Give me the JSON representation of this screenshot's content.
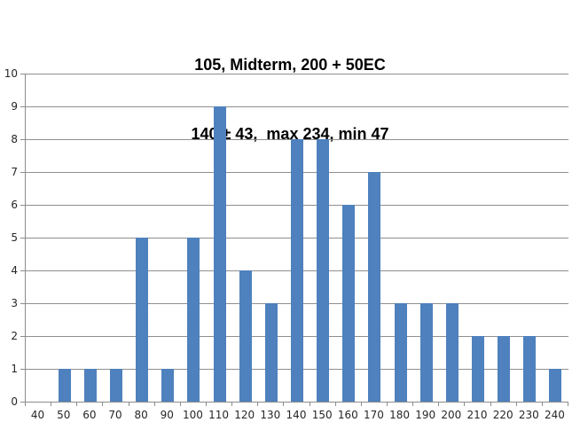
{
  "title": {
    "line1": "105, Midterm, 200 + 50EC",
    "line2": "140 ± 43,  max 234, min 47"
  },
  "chart_data": {
    "type": "bar",
    "title": "105, Midterm, 200 + 50EC",
    "subtitle": "140 ± 43,  max 234, min 47",
    "categories": [
      40,
      50,
      60,
      70,
      80,
      90,
      100,
      110,
      120,
      130,
      140,
      150,
      160,
      170,
      180,
      190,
      200,
      210,
      220,
      230,
      240
    ],
    "values": [
      0,
      1,
      1,
      1,
      5,
      1,
      5,
      9,
      4,
      3,
      8,
      8,
      6,
      7,
      3,
      3,
      3,
      2,
      2,
      2,
      1
    ],
    "xlabel": "",
    "ylabel": "",
    "ylim": [
      0,
      10
    ],
    "ytick_step": 1,
    "ytick_labels": [
      "0",
      "1",
      "2",
      "3",
      "4",
      "5",
      "6",
      "7",
      "8",
      "9",
      "10"
    ],
    "grid": "horizontal",
    "legend": "none",
    "colors": {
      "bar": "#4e81bd",
      "gridline": "#8f8f8f",
      "axis": "#8c8c8c",
      "tick_label": "#262626",
      "title": "#000000",
      "background": "#ffffff"
    }
  }
}
